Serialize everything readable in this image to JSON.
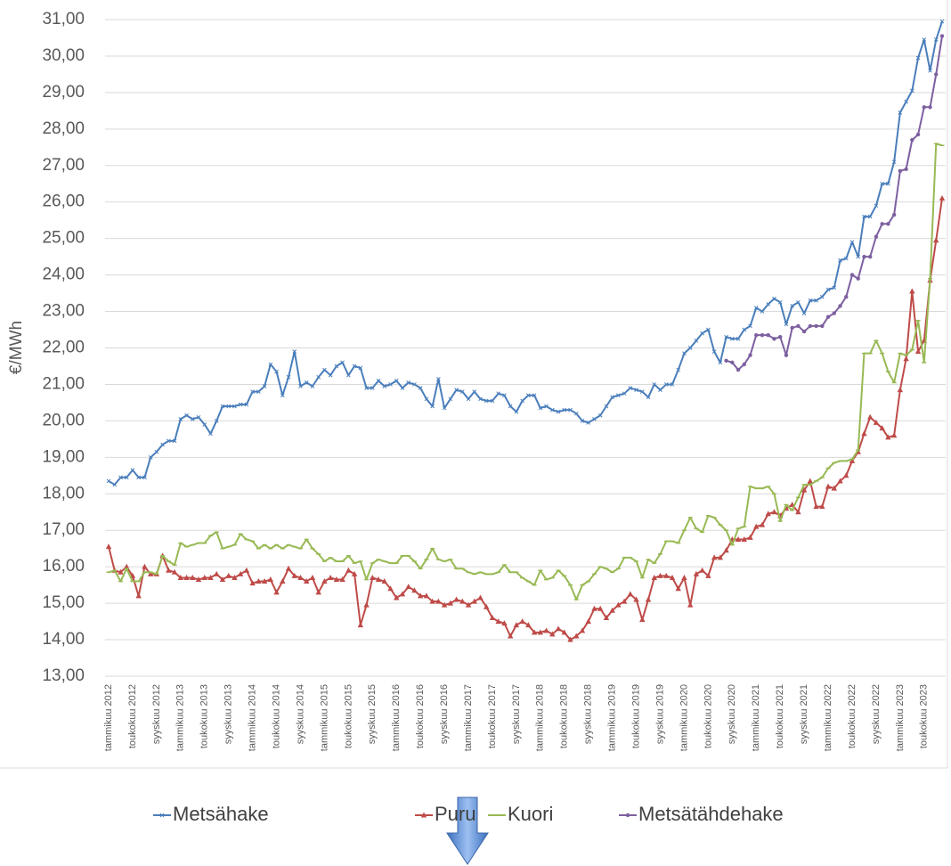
{
  "chart_data": {
    "type": "line",
    "ylabel": "€/MWh",
    "categories": [
      "tammikuu 2012",
      null,
      null,
      null,
      "toukokuu 2012",
      null,
      null,
      null,
      "syyskuu 2012",
      null,
      null,
      null,
      "tammikuu 2013",
      null,
      null,
      null,
      "toukokuu 2013",
      null,
      null,
      null,
      "syyskuu 2013",
      null,
      null,
      null,
      "tammikuu 2014",
      null,
      null,
      null,
      "toukokuu 2014",
      null,
      null,
      null,
      "syyskuu 2014",
      null,
      null,
      null,
      "tammikuu 2015",
      null,
      null,
      null,
      "toukokuu 2015",
      null,
      null,
      null,
      "syyskuu 2015",
      null,
      null,
      null,
      "tammikuu 2016",
      null,
      null,
      null,
      "toukokuu 2016",
      null,
      null,
      null,
      "syyskuu 2016",
      null,
      null,
      null,
      "tammikuu 2017",
      null,
      null,
      null,
      "toukokuu 2017",
      null,
      null,
      null,
      "syyskuu 2017",
      null,
      null,
      null,
      "tammikuu 2018",
      null,
      null,
      null,
      "toukokuu 2018",
      null,
      null,
      null,
      "syyskuu 2018",
      null,
      null,
      null,
      "tammikuu 2019",
      null,
      null,
      null,
      "toukokuu 2019",
      null,
      null,
      null,
      "syyskuu 2019",
      null,
      null,
      null,
      "tammikuu 2020",
      null,
      null,
      null,
      "toukokuu 2020",
      null,
      null,
      null,
      "syyskuu 2020",
      null,
      null,
      null,
      "tammikuu 2021",
      null,
      null,
      null,
      "toukokuu 2021",
      null,
      null,
      null,
      "syyskuu 2021",
      null,
      null,
      null,
      "tammikuu 2022",
      null,
      null,
      null,
      "toukokuu 2022",
      null,
      null,
      null,
      "syyskuu 2022",
      null,
      null,
      null,
      "tammikuu 2023",
      null,
      null,
      null,
      "toukokuu 2023",
      null,
      null,
      null
    ],
    "series": [
      {
        "name": "Metsähake",
        "color": "#4a7ebb",
        "marker": "x",
        "values": [
          18.35,
          18.25,
          18.45,
          18.45,
          18.65,
          18.45,
          18.45,
          19.0,
          19.15,
          19.35,
          19.45,
          19.45,
          20.05,
          20.15,
          20.05,
          20.1,
          19.9,
          19.65,
          20.0,
          20.4,
          20.4,
          20.4,
          20.45,
          20.45,
          20.8,
          20.8,
          20.95,
          21.55,
          21.35,
          20.7,
          21.2,
          21.9,
          20.95,
          21.05,
          20.95,
          21.2,
          21.4,
          21.25,
          21.5,
          21.6,
          21.25,
          21.5,
          21.45,
          20.9,
          20.9,
          21.1,
          20.95,
          21.0,
          21.1,
          20.9,
          21.05,
          21.0,
          20.9,
          20.6,
          20.4,
          21.15,
          20.35,
          20.6,
          20.85,
          20.8,
          20.6,
          20.8,
          20.6,
          20.55,
          20.55,
          20.75,
          20.7,
          20.4,
          20.25,
          20.55,
          20.7,
          20.7,
          20.35,
          20.4,
          20.3,
          20.25,
          20.3,
          20.3,
          20.2,
          20.0,
          19.95,
          20.05,
          20.15,
          20.4,
          20.65,
          20.7,
          20.75,
          20.9,
          20.85,
          20.8,
          20.65,
          21.0,
          20.85,
          21.0,
          21.0,
          21.4,
          21.85,
          22.0,
          22.2,
          22.4,
          22.5,
          21.9,
          21.6,
          22.3,
          22.25,
          22.25,
          22.5,
          22.6,
          23.1,
          23.0,
          23.2,
          23.35,
          23.25,
          22.65,
          23.15,
          23.25,
          22.95,
          23.3,
          23.3,
          23.4,
          23.6,
          23.65,
          24.4,
          24.45,
          24.9,
          24.5,
          25.6,
          25.6,
          25.9,
          26.5,
          26.5,
          27.1,
          28.45,
          28.75,
          29.05,
          29.95,
          30.45,
          29.6,
          30.45,
          30.95
        ]
      },
      {
        "name": "Puru",
        "color": "#be4b48",
        "marker": "triangle",
        "values": [
          16.55,
          15.9,
          15.85,
          16.0,
          15.75,
          15.2,
          16.0,
          15.8,
          15.8,
          16.3,
          15.9,
          15.85,
          15.7,
          15.7,
          15.7,
          15.65,
          15.7,
          15.7,
          15.8,
          15.65,
          15.75,
          15.7,
          15.8,
          15.9,
          15.55,
          15.6,
          15.6,
          15.65,
          15.3,
          15.6,
          15.95,
          15.75,
          15.7,
          15.6,
          15.7,
          15.3,
          15.6,
          15.7,
          15.65,
          15.65,
          15.9,
          15.8,
          14.4,
          14.95,
          15.7,
          15.65,
          15.6,
          15.4,
          15.15,
          15.25,
          15.45,
          15.35,
          15.2,
          15.2,
          15.05,
          15.05,
          14.95,
          15.0,
          15.1,
          15.05,
          14.95,
          15.05,
          15.15,
          14.9,
          14.6,
          14.5,
          14.45,
          14.1,
          14.4,
          14.5,
          14.4,
          14.2,
          14.2,
          14.25,
          14.15,
          14.3,
          14.2,
          14.0,
          14.1,
          14.25,
          14.5,
          14.85,
          14.85,
          14.6,
          14.8,
          14.95,
          15.05,
          15.25,
          15.1,
          14.55,
          15.1,
          15.7,
          15.75,
          15.75,
          15.7,
          15.4,
          15.7,
          14.95,
          15.8,
          15.9,
          15.75,
          16.25,
          16.25,
          16.45,
          16.75,
          16.75,
          16.75,
          16.8,
          17.1,
          17.15,
          17.45,
          17.5,
          17.4,
          17.6,
          17.7,
          17.5,
          18.1,
          18.35,
          17.65,
          17.65,
          18.2,
          18.15,
          18.35,
          18.5,
          18.9,
          19.15,
          19.65,
          20.1,
          19.95,
          19.8,
          19.55,
          19.6,
          20.85,
          21.7,
          23.55,
          21.9,
          22.2,
          23.85,
          24.95,
          26.1
        ]
      },
      {
        "name": "Kuori",
        "color": "#98b954",
        "marker": "dash",
        "values": [
          15.85,
          15.9,
          15.6,
          15.95,
          15.6,
          15.6,
          15.85,
          15.85,
          15.8,
          16.3,
          16.15,
          16.05,
          16.65,
          16.55,
          16.6,
          16.65,
          16.65,
          16.85,
          16.95,
          16.5,
          16.55,
          16.6,
          16.9,
          16.75,
          16.7,
          16.5,
          16.6,
          16.5,
          16.6,
          16.5,
          16.6,
          16.55,
          16.5,
          16.75,
          16.5,
          16.35,
          16.15,
          16.25,
          16.15,
          16.15,
          16.3,
          16.1,
          16.15,
          15.65,
          16.1,
          16.2,
          16.15,
          16.1,
          16.1,
          16.3,
          16.3,
          16.15,
          15.95,
          16.2,
          16.5,
          16.2,
          16.15,
          16.2,
          15.95,
          15.95,
          15.85,
          15.8,
          15.85,
          15.8,
          15.8,
          15.85,
          16.05,
          15.85,
          15.85,
          15.7,
          15.6,
          15.5,
          15.9,
          15.65,
          15.7,
          15.9,
          15.75,
          15.5,
          15.1,
          15.5,
          15.6,
          15.8,
          16.0,
          15.95,
          15.85,
          15.95,
          16.25,
          16.25,
          16.15,
          15.7,
          16.2,
          16.1,
          16.35,
          16.7,
          16.7,
          16.65,
          17.0,
          17.35,
          17.05,
          16.95,
          17.4,
          17.35,
          17.15,
          17.0,
          16.6,
          17.05,
          17.1,
          18.2,
          18.15,
          18.15,
          18.2,
          18.0,
          17.25,
          17.7,
          17.55,
          17.9,
          18.25,
          18.25,
          18.35,
          18.45,
          18.7,
          18.85,
          18.9,
          18.9,
          18.95,
          19.2,
          21.85,
          21.85,
          22.2,
          21.85,
          21.35,
          21.05,
          21.85,
          21.8,
          21.95,
          22.75,
          21.6,
          23.9,
          27.6,
          27.55
        ]
      },
      {
        "name": "Metsätähdehake",
        "color": "#7d60a0",
        "marker": "dot",
        "values": [
          null,
          null,
          null,
          null,
          null,
          null,
          null,
          null,
          null,
          null,
          null,
          null,
          null,
          null,
          null,
          null,
          null,
          null,
          null,
          null,
          null,
          null,
          null,
          null,
          null,
          null,
          null,
          null,
          null,
          null,
          null,
          null,
          null,
          null,
          null,
          null,
          null,
          null,
          null,
          null,
          null,
          null,
          null,
          null,
          null,
          null,
          null,
          null,
          null,
          null,
          null,
          null,
          null,
          null,
          null,
          null,
          null,
          null,
          null,
          null,
          null,
          null,
          null,
          null,
          null,
          null,
          null,
          null,
          null,
          null,
          null,
          null,
          null,
          null,
          null,
          null,
          null,
          null,
          null,
          null,
          null,
          null,
          null,
          null,
          null,
          null,
          null,
          null,
          null,
          null,
          null,
          null,
          null,
          null,
          null,
          null,
          null,
          null,
          null,
          null,
          null,
          null,
          null,
          21.65,
          21.6,
          21.4,
          21.55,
          21.8,
          22.35,
          22.35,
          22.35,
          22.25,
          22.3,
          21.8,
          22.55,
          22.6,
          22.45,
          22.6,
          22.6,
          22.6,
          22.85,
          22.95,
          23.15,
          23.4,
          24.0,
          23.9,
          24.5,
          24.5,
          25.05,
          25.4,
          25.4,
          25.65,
          26.85,
          26.9,
          27.7,
          27.85,
          28.6,
          28.6,
          29.5,
          30.55
        ]
      }
    ],
    "ylim": [
      13,
      31
    ],
    "yticks": [
      {
        "value": 13,
        "label": "13,00"
      },
      {
        "value": 14,
        "label": "14,00"
      },
      {
        "value": 15,
        "label": "15,00"
      },
      {
        "value": 16,
        "label": "16,00"
      },
      {
        "value": 17,
        "label": "17,00"
      },
      {
        "value": 18,
        "label": "18,00"
      },
      {
        "value": 19,
        "label": "19,00"
      },
      {
        "value": 20,
        "label": "20,00"
      },
      {
        "value": 21,
        "label": "21,00"
      },
      {
        "value": 22,
        "label": "22,00"
      },
      {
        "value": 23,
        "label": "23,00"
      },
      {
        "value": 24,
        "label": "24,00"
      },
      {
        "value": 25,
        "label": "25,00"
      },
      {
        "value": 26,
        "label": "26,00"
      },
      {
        "value": 27,
        "label": "27,00"
      },
      {
        "value": 28,
        "label": "28,00"
      },
      {
        "value": 29,
        "label": "29,00"
      },
      {
        "value": 30,
        "label": "30,00"
      },
      {
        "value": 31,
        "label": "31,00"
      }
    ],
    "grid": true,
    "legend": "bottom"
  }
}
